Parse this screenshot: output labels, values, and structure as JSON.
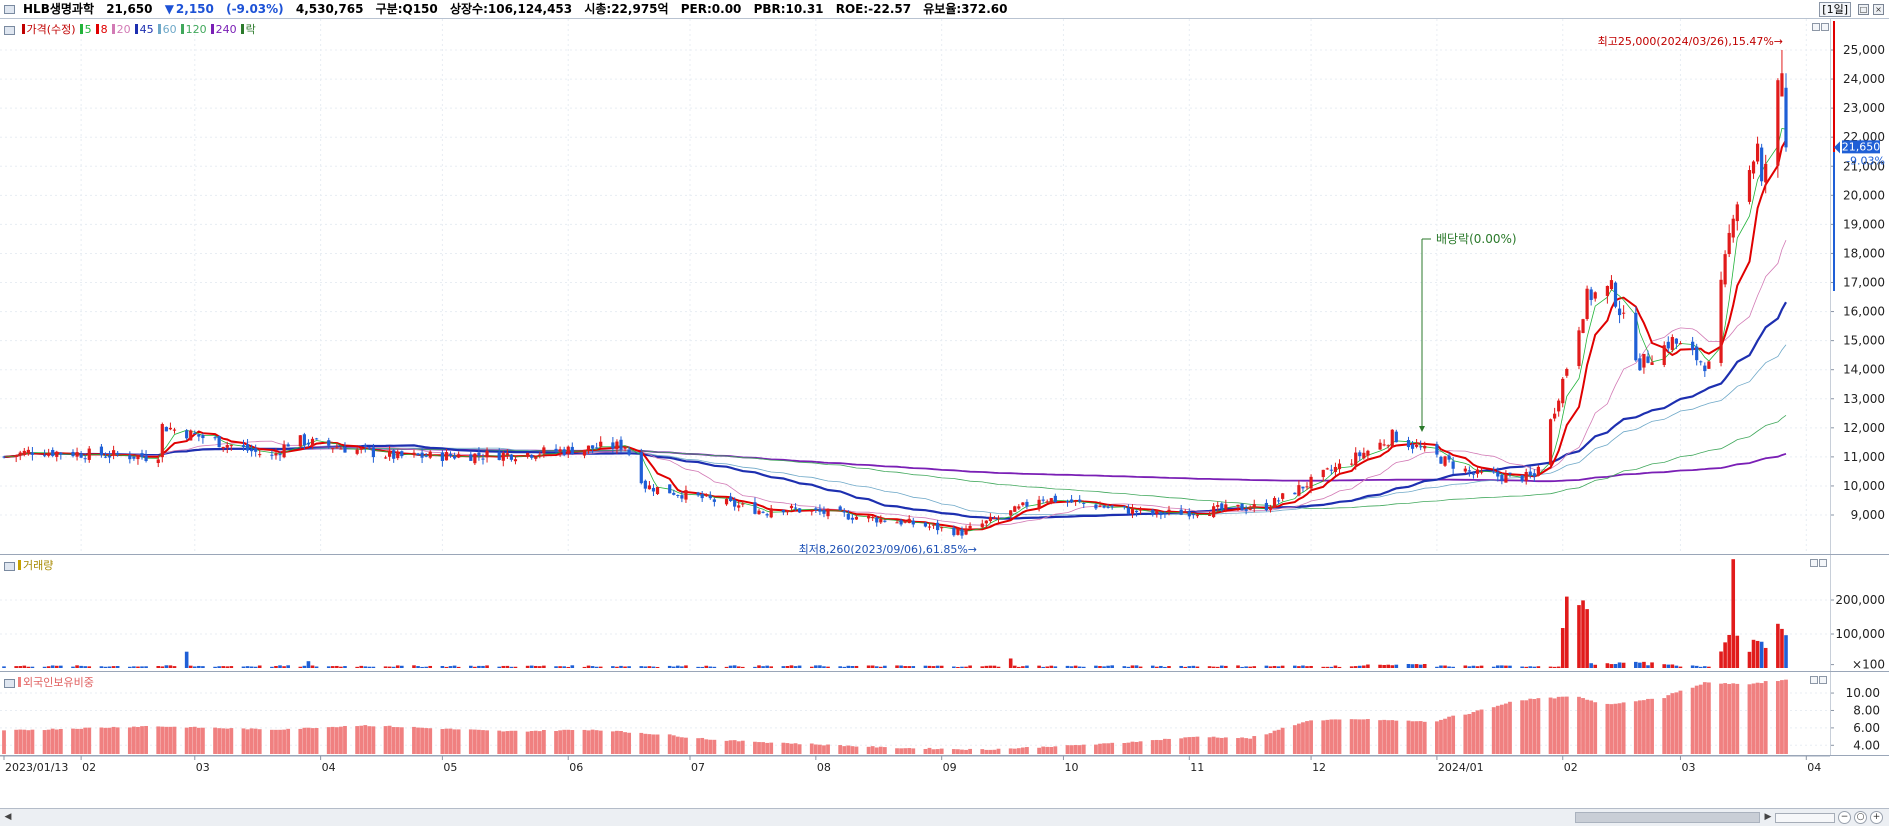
{
  "header": {
    "name": "HLB생명과학",
    "price": "21,650",
    "change_arrow": "▼",
    "change": "2,150",
    "change_pct": "(-9.03%)",
    "volume": "4,530,765",
    "class": "구분:Q150",
    "shares": "상장수:106,124,453",
    "market_cap": "시총:22,975억",
    "per": "PER:0.00",
    "pbr": "PBR:10.31",
    "roe": "ROE:-22.57",
    "reserve": "유보율:372.60",
    "period": "[1일]",
    "down_color": "#1d52d6"
  },
  "price_pane": {
    "legend": [
      {
        "label": "가격(수정)",
        "color": "#c00000"
      },
      {
        "label": "5",
        "color": "#22b33a"
      },
      {
        "label": "8",
        "color": "#e00000"
      },
      {
        "label": "20",
        "color": "#d27ab5"
      },
      {
        "label": "45",
        "color": "#1d2fb0"
      },
      {
        "label": "60",
        "color": "#6ea8c8"
      },
      {
        "label": "120",
        "color": "#41a85c"
      },
      {
        "label": "240",
        "color": "#7a1fb5"
      },
      {
        "label": "락",
        "color": "#2b7a2b"
      }
    ],
    "high_label": "최고25,000(2024/03/26),15.47%→",
    "low_label": "최저8,260(2023/09/06),61.85%→",
    "dividend_label": "배당락(0.00%)",
    "current_price_tag": "21,650",
    "current_change_tag": "-9.03%",
    "y_ticks": [
      "25,000",
      "24,000",
      "23,000",
      "22,000",
      "21,000",
      "20,000",
      "19,000",
      "18,000",
      "17,000",
      "16,000",
      "15,000",
      "14,000",
      "13,000",
      "12,000",
      "11,000",
      "10,000",
      "9,000"
    ]
  },
  "volume_pane": {
    "legend": "거래량",
    "y_ticks": [
      "200,000",
      "100,000",
      "×100"
    ]
  },
  "foreign_pane": {
    "legend": "외국인보유비중",
    "y_ticks": [
      "10.00",
      "8.00",
      "6.00",
      "4.00"
    ]
  },
  "x_axis": {
    "labels": [
      "2023/01/13",
      "02",
      "03",
      "04",
      "05",
      "06",
      "07",
      "08",
      "09",
      "10",
      "11",
      "12",
      "2024/01",
      "02",
      "03",
      "04"
    ]
  },
  "chart_data": {
    "type": "candlestick",
    "title": "HLB생명과학",
    "period": "daily",
    "x_range": [
      "2023/01/13",
      "2024/03/27"
    ],
    "ylim": [
      8200,
      25300
    ],
    "monthly_closes": [
      {
        "month": "2023/01",
        "close": 11200
      },
      {
        "month": "2023/02",
        "close": 11100
      },
      {
        "month": "2023/03",
        "close": 11000
      },
      {
        "month": "2023/04",
        "close": 11000
      },
      {
        "month": "2023/05",
        "close": 11100
      },
      {
        "month": "2023/06",
        "close": 10000
      },
      {
        "month": "2023/07",
        "close": 9100
      },
      {
        "month": "2023/08",
        "close": 8800
      },
      {
        "month": "2023/09",
        "close": 9200
      },
      {
        "month": "2023/10",
        "close": 9100
      },
      {
        "month": "2023/11",
        "close": 9300
      },
      {
        "month": "2023/12",
        "close": 11600
      },
      {
        "month": "2024/01",
        "close": 10300
      },
      {
        "month": "2024/02",
        "close": 14200
      },
      {
        "month": "2024/03",
        "close": 21650
      }
    ],
    "high": {
      "date": "2024/03/26",
      "value": 25000
    },
    "low": {
      "date": "2023/09/06",
      "value": 8260
    },
    "last": 21650,
    "volume_ylim": [
      0,
      320000
    ],
    "foreign_ratio_ylim": [
      3,
      12
    ]
  }
}
